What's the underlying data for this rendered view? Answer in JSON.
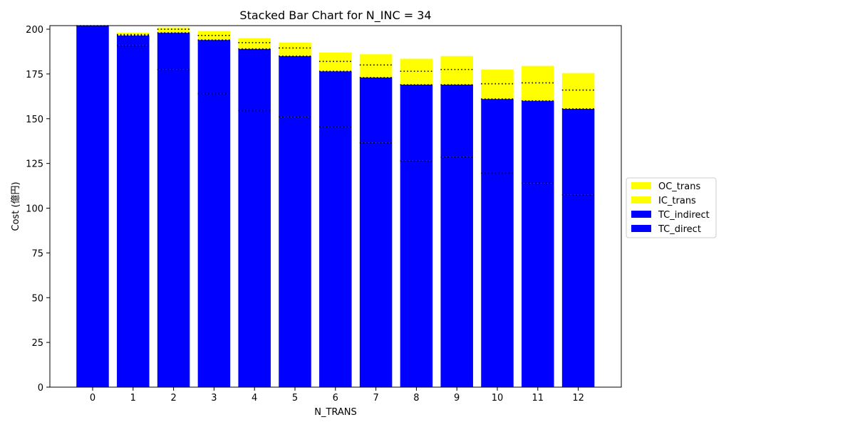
{
  "chart_data": {
    "type": "bar",
    "stacked": true,
    "title": "Stacked Bar Chart for N_INC = 34",
    "xlabel": "N_TRANS",
    "ylabel": "Cost (億円)",
    "ylim": [
      0,
      202
    ],
    "yticks": [
      0,
      25,
      50,
      75,
      100,
      125,
      150,
      175,
      200
    ],
    "categories": [
      "0",
      "1",
      "2",
      "3",
      "4",
      "5",
      "6",
      "7",
      "8",
      "9",
      "10",
      "11",
      "12"
    ],
    "series": [
      {
        "name": "TC_direct",
        "color": "#0000ff",
        "values": [
          202,
          191,
          177.5,
          164,
          154.5,
          151,
          145.5,
          136.5,
          126.5,
          128.5,
          119.5,
          114,
          107.5
        ]
      },
      {
        "name": "TC_indirect",
        "color": "#0000ff",
        "values": [
          0,
          5.5,
          20.5,
          30,
          34.5,
          34,
          31,
          36.5,
          42.5,
          40.5,
          41.5,
          46,
          48
        ]
      },
      {
        "name": "IC_trans",
        "color": "#ffff00",
        "values": [
          0,
          0.5,
          2,
          2.5,
          3.5,
          4.5,
          5.5,
          7,
          7.5,
          8.5,
          8.5,
          10,
          10.5
        ]
      },
      {
        "name": "OC_trans",
        "color": "#ffff00",
        "values": [
          0,
          1,
          1,
          2.5,
          2.5,
          3,
          5,
          6,
          7,
          7.5,
          8,
          9.5,
          9.5
        ]
      }
    ],
    "grid": false,
    "legend": "center-right"
  }
}
